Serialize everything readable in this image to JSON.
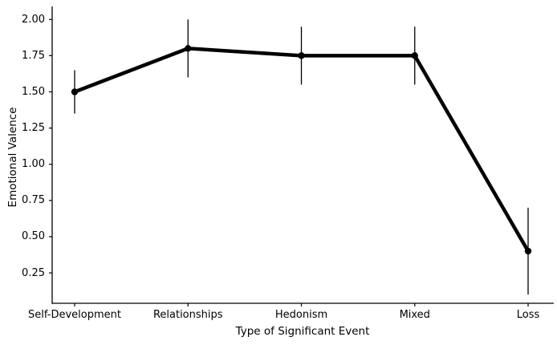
{
  "chart_data": {
    "type": "line",
    "title": "",
    "xlabel": "Type of Significant Event",
    "ylabel": "Emotional Valence",
    "categories": [
      "Self-Development",
      "Relationships",
      "Hedonism",
      "Mixed",
      "Loss"
    ],
    "series": [
      {
        "name": "Emotional Valence",
        "values": [
          1.5,
          1.8,
          1.75,
          1.75,
          0.4
        ],
        "error_low": [
          1.35,
          1.6,
          1.55,
          1.55,
          0.1
        ],
        "error_high": [
          1.65,
          2.0,
          1.95,
          1.95,
          0.7
        ]
      }
    ],
    "yticks": [
      0.25,
      0.5,
      0.75,
      1.0,
      1.25,
      1.5,
      1.75,
      2.0
    ],
    "ytick_labels": [
      "0.25",
      "0.50",
      "0.75",
      "1.00",
      "1.25",
      "1.50",
      "1.75",
      "2.00"
    ],
    "ylim": [
      0.04,
      2.09
    ],
    "grid": false,
    "legend": false,
    "line_color": "#000000",
    "marker_color": "#000000",
    "error_bar_color": "#000000",
    "axis_color": "#000000",
    "background_color": "#ffffff"
  }
}
